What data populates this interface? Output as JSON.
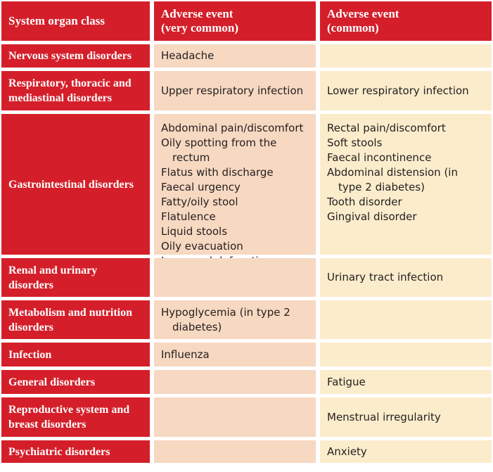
{
  "headers": {
    "organ": "System organ class",
    "very_common_line1": "Adverse event",
    "very_common_line2": "(very common)",
    "common_line1": "Adverse event",
    "common_line2": "(common)"
  },
  "rows": [
    {
      "organ": "Nervous system disorders",
      "very_common": [
        "Headache"
      ],
      "common": []
    },
    {
      "organ": "Respiratory, thoracic and mediastinal disorders",
      "very_common": [
        "Upper respiratory infection"
      ],
      "common": [
        "Lower respiratory infection"
      ]
    },
    {
      "organ": "Gastrointestinal disorders",
      "very_common": [
        "Abdominal pain/discomfort",
        "Oily spotting from the rectum",
        "Flatus with discharge",
        "Faecal urgency",
        "Fatty/oily stool",
        "Flatulence",
        "Liquid stools",
        "Oily evacuation",
        "Increased defecation"
      ],
      "common": [
        "Rectal pain/discomfort",
        "Soft stools",
        "Faecal incontinence",
        "Abdominal distension (in type 2 diabetes)",
        "Tooth disorder",
        "Gingival disorder"
      ]
    },
    {
      "organ": "Renal and urinary disorders",
      "very_common": [],
      "common": [
        "Urinary tract infection"
      ]
    },
    {
      "organ": "Metabolism and nutrition disorders",
      "very_common": [
        "Hypoglycemia (in type 2 diabetes)"
      ],
      "common": []
    },
    {
      "organ": "Infection",
      "very_common": [
        "Influenza"
      ],
      "common": []
    },
    {
      "organ": "General disorders",
      "very_common": [],
      "common": [
        "Fatigue"
      ]
    },
    {
      "organ": "Reproductive system and breast disorders",
      "very_common": [],
      "common": [
        "Menstrual irregularity"
      ]
    },
    {
      "organ": "Psychiatric disorders",
      "very_common": [],
      "common": [
        "Anxiety"
      ]
    }
  ],
  "colors": {
    "header_bg": "#d41f2a",
    "very_common_bg": "#f7d8c1",
    "common_bg": "#fbeccb"
  }
}
